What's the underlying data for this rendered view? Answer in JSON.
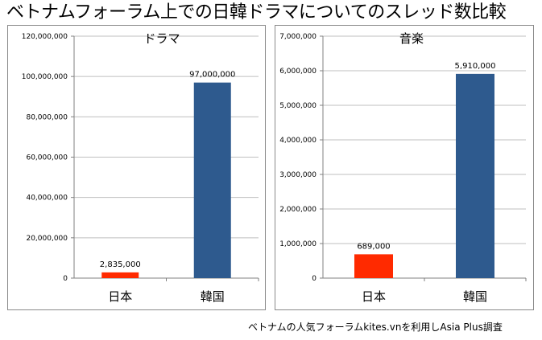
{
  "title": "ベトナムフォーラム上での日韓ドラマについてのスレッド数比較",
  "source_note": "ベトナムの人気フォーラムkites.vnを利用しAsia Plus調査",
  "colors": {
    "japan": "#ff2a00",
    "korea": "#2e5a8e",
    "grid": "#bfbfbf",
    "axis": "#808080"
  },
  "chart_data": [
    {
      "type": "bar",
      "title": "ドラマ",
      "categories": [
        "日本",
        "韓国"
      ],
      "values": [
        2835000,
        97000000
      ],
      "value_labels": [
        "2,835,000",
        "97,000,000"
      ],
      "ylim": [
        0,
        120000000
      ],
      "yticks": [
        0,
        20000000,
        40000000,
        60000000,
        80000000,
        100000000,
        120000000
      ],
      "ytick_labels": [
        "0",
        "20,000,000",
        "40,000,000",
        "60,000,000",
        "80,000,000",
        "100,000,000",
        "120,000,000"
      ],
      "grid": true
    },
    {
      "type": "bar",
      "title": "音楽",
      "categories": [
        "日本",
        "韓国"
      ],
      "values": [
        689000,
        5910000
      ],
      "value_labels": [
        "689,000",
        "5,910,000"
      ],
      "ylim": [
        0,
        7000000
      ],
      "yticks": [
        0,
        1000000,
        2000000,
        3000000,
        4000000,
        5000000,
        6000000,
        7000000
      ],
      "ytick_labels": [
        "0",
        "1,000,000",
        "2,000,000",
        "3,000,000",
        "4,000,000",
        "5,000,000",
        "6,000,000",
        "7,000,000"
      ],
      "grid": true
    }
  ]
}
